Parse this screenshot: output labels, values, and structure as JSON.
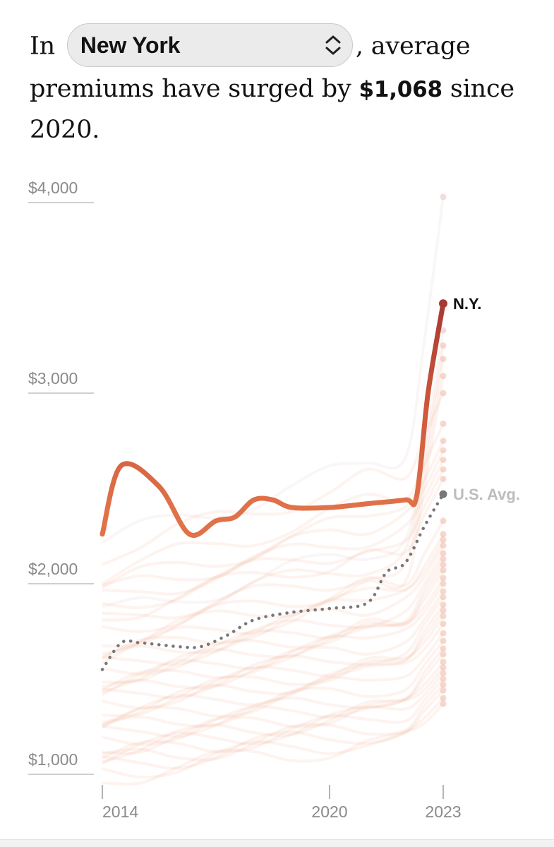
{
  "headline": {
    "prefix": "In",
    "selected_state": "New York",
    "mid": ", average premiums have surged by",
    "amount": "$1,068",
    "suffix": "since 2020."
  },
  "colors": {
    "highlight": "#e07148",
    "highlight_top": "#a83a33",
    "background_lines": "#f2b59a",
    "us_average": "#777777",
    "axis_text": "#8a8a8a",
    "label_dark": "#121212",
    "label_muted": "#bdbdbd"
  },
  "chart_data": {
    "type": "line",
    "title": "",
    "xlabel": "",
    "ylabel": "",
    "xlim": [
      2014,
      2023
    ],
    "ylim": [
      1000,
      4000
    ],
    "x_ticks": [
      {
        "value": 2014,
        "label": "2014"
      },
      {
        "value": 2020,
        "label": "2020"
      },
      {
        "value": 2023,
        "label": "2023"
      }
    ],
    "y_ticks": [
      {
        "value": 4000,
        "label": "$4,000"
      },
      {
        "value": 3000,
        "label": "$3,000"
      },
      {
        "value": 2000,
        "label": "$2,000"
      },
      {
        "value": 1000,
        "label": "$1,000"
      }
    ],
    "highlighted_series": {
      "name": "N.Y.",
      "label": "N.Y.",
      "points": [
        [
          2014,
          2260
        ],
        [
          2014.5,
          2620
        ],
        [
          2015.5,
          2510
        ],
        [
          2016.3,
          2260
        ],
        [
          2017,
          2330
        ],
        [
          2017.5,
          2350
        ],
        [
          2018,
          2440
        ],
        [
          2018.5,
          2440
        ],
        [
          2019,
          2400
        ],
        [
          2020,
          2400
        ],
        [
          2021,
          2420
        ],
        [
          2022,
          2440
        ],
        [
          2022.3,
          2460
        ],
        [
          2022.6,
          3000
        ],
        [
          2023,
          3470
        ]
      ]
    },
    "us_average": {
      "name": "U.S. Avg.",
      "label": "U.S. Avg.",
      "points": [
        [
          2014,
          1550
        ],
        [
          2014.5,
          1690
        ],
        [
          2015,
          1690
        ],
        [
          2016,
          1670
        ],
        [
          2016.6,
          1670
        ],
        [
          2017.3,
          1730
        ],
        [
          2018,
          1810
        ],
        [
          2019,
          1850
        ],
        [
          2020,
          1870
        ],
        [
          2021,
          1900
        ],
        [
          2021.5,
          2060
        ],
        [
          2022,
          2110
        ],
        [
          2022.5,
          2300
        ],
        [
          2023,
          2470
        ]
      ]
    },
    "background_series_end_values": [
      4030,
      3330,
      3250,
      3180,
      3090,
      3000,
      2840,
      2750,
      2700,
      2650,
      2600,
      2550,
      2330,
      2260,
      2230,
      2200,
      2160,
      2130,
      2100,
      2070,
      2030,
      2000,
      1960,
      1930,
      1890,
      1860,
      1830,
      1790,
      1740,
      1700,
      1660,
      1630,
      1590,
      1560,
      1530,
      1500,
      1470,
      1440,
      1400,
      1370
    ]
  }
}
